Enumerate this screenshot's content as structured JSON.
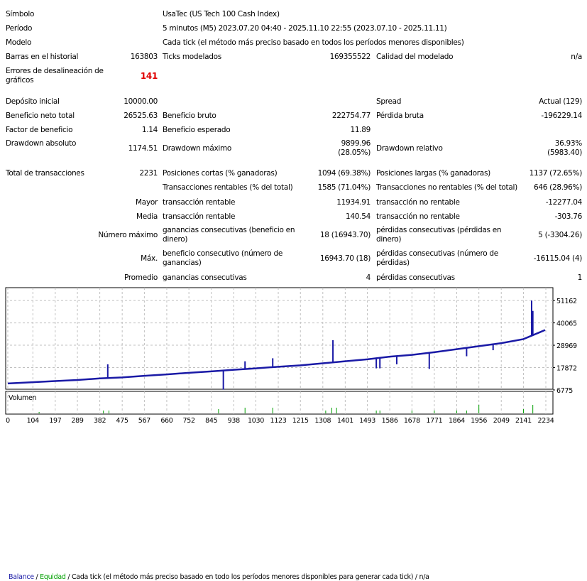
{
  "rows": [
    {
      "l1": "Símbolo",
      "v2full": "UsaTec (US Tech 100 Cash Index)"
    },
    {
      "l1": "Período",
      "v2full": "5 minutos (M5) 2023.07.20 04:40 - 2025.11.10 22:55 (2023.07.10 - 2025.11.11)"
    },
    {
      "l1": "Modelo",
      "v2full": "Cada tick (el método más preciso basado en todos los períodos menores disponibles)"
    },
    {
      "l1": "Barras en el historial",
      "v1": "163803",
      "l2": "Ticks modelados",
      "v2": "169355522",
      "l3": "Calidad del modelado",
      "v3": "n/a"
    },
    {
      "l1": "Errores de desalineación de gráficos",
      "v1": "141"
    },
    {
      "l1": "Depósito inicial",
      "v1": "10000.00",
      "l3": "Spread",
      "v3": "Actual (129)"
    },
    {
      "l1": "Beneficio neto total",
      "v1": "26525.63",
      "l2": "Beneficio bruto",
      "v2": "222754.77",
      "l3": "Pérdida bruta",
      "v3": "-196229.14"
    },
    {
      "l1": "Factor de beneficio",
      "v1": "1.14",
      "l2": "Beneficio esperado",
      "v2": "11.89"
    },
    {
      "l1": "Drawdown absoluto",
      "v1": "1174.51",
      "l2": "Drawdown máximo",
      "v2": "9899.96",
      "v2b": "(28.05%)",
      "l3": "Drawdown relativo",
      "v3": "36.93%",
      "v3b": "(5983.40)"
    },
    {
      "l1": "Total de transacciones",
      "v1": "2231",
      "l2": "Posiciones cortas (% ganadoras)",
      "v2": "1094 (69.38%)",
      "l3": "Posiciones largas (% ganadoras)",
      "v3": "1137 (72.65%)"
    },
    {
      "l2": "Transacciones rentables (% del total)",
      "v2": "1585 (71.04%)",
      "l3": "Transacciones no rentables (% del total)",
      "v3": "646 (28.96%)"
    },
    {
      "v1": "Mayor",
      "l2": "transacción rentable",
      "v2": "11934.91",
      "l3": "transacción no rentable",
      "v3": "-12277.04"
    },
    {
      "v1": "Media",
      "l2": "transacción rentable",
      "v2": "140.54",
      "l3": "transacción no rentable",
      "v3": "-303.76"
    },
    {
      "v1": "Número máximo",
      "l2": "ganancias consecutivas (beneficio en dinero)",
      "v2": "18 (16943.70)",
      "l3": "pérdidas consecutivas (pérdidas en dinero)",
      "v3": "5 (-3304.26)"
    },
    {
      "v1": "Máx.",
      "l2": "beneficio consecutivo (número de ganancias)",
      "v2": "16943.70 (18)",
      "l3": "pérdidas consecutivas (número de pérdidas)",
      "v3": "-16115.04 (4)"
    },
    {
      "v1": "Promedio",
      "l2": "ganancias consecutivas",
      "v2": "4",
      "l3": "pérdidas consecutivas",
      "v3": "1"
    }
  ],
  "chart_data": {
    "type": "line",
    "legend": {
      "balance": "Balance",
      "sep1": " / ",
      "equity": "Equidad",
      "sep2": " / ",
      "model": "Cada tick (el método más preciso basado en todo los períodos menores disponibles para generar cada tick)",
      "suffix": "  / n/a"
    },
    "volume_label": "Volumen",
    "yticks": [
      51162,
      40065,
      28969,
      17872,
      6775
    ],
    "xticks": [
      0,
      104,
      197,
      289,
      382,
      475,
      567,
      660,
      752,
      845,
      938,
      1030,
      1123,
      1215,
      1308,
      1401,
      1493,
      1586,
      1678,
      1771,
      1864,
      1956,
      2049,
      2141,
      2234
    ],
    "ylim": [
      6775,
      57200
    ],
    "xlim": [
      0,
      2234
    ],
    "colors": {
      "balance": "#1a1aa6",
      "equity": "#00a000",
      "grid": "#c0c0c0"
    },
    "balance": [
      [
        0,
        10000
      ],
      [
        104,
        10600
      ],
      [
        197,
        11200
      ],
      [
        289,
        11700
      ],
      [
        382,
        12500
      ],
      [
        475,
        13000
      ],
      [
        567,
        13800
      ],
      [
        660,
        14500
      ],
      [
        752,
        15300
      ],
      [
        845,
        16000
      ],
      [
        938,
        16800
      ],
      [
        1030,
        17500
      ],
      [
        1123,
        18300
      ],
      [
        1215,
        19000
      ],
      [
        1308,
        20000
      ],
      [
        1401,
        21000
      ],
      [
        1493,
        22000
      ],
      [
        1586,
        23300
      ],
      [
        1678,
        24200
      ],
      [
        1771,
        25500
      ],
      [
        1864,
        27000
      ],
      [
        1956,
        28500
      ],
      [
        2049,
        30000
      ],
      [
        2141,
        32000
      ],
      [
        2231,
        36525
      ]
    ],
    "equity_spikes": [
      [
        415,
        19500
      ],
      [
        895,
        6900
      ],
      [
        985,
        21000
      ],
      [
        1100,
        22500
      ],
      [
        1350,
        31500
      ],
      [
        1530,
        17500
      ],
      [
        1545,
        17500
      ],
      [
        1615,
        19500
      ],
      [
        1750,
        17200
      ],
      [
        1905,
        23500
      ],
      [
        2015,
        26500
      ],
      [
        2175,
        51162
      ],
      [
        2180,
        46000
      ]
    ],
    "volume": [
      [
        130,
        1
      ],
      [
        397,
        2
      ],
      [
        420,
        2
      ],
      [
        875,
        3
      ],
      [
        985,
        4
      ],
      [
        1100,
        4
      ],
      [
        1320,
        2
      ],
      [
        1345,
        4
      ],
      [
        1365,
        4
      ],
      [
        1530,
        2
      ],
      [
        1545,
        2
      ],
      [
        1678,
        2
      ],
      [
        1771,
        2
      ],
      [
        1864,
        2
      ],
      [
        1905,
        2
      ],
      [
        1956,
        6
      ],
      [
        2141,
        3
      ],
      [
        2180,
        6
      ]
    ]
  }
}
